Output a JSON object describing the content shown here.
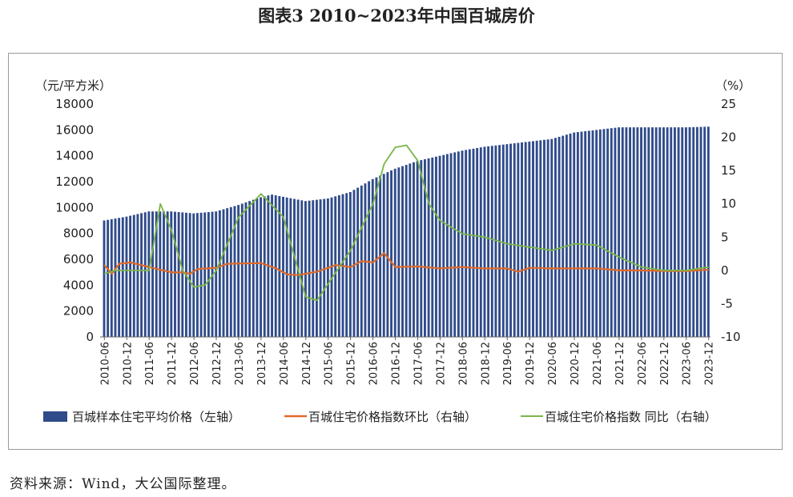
{
  "figure": {
    "title": "图表3  2010~2023年中国百城房价",
    "source": "资料来源：Wind，大公国际整理。"
  },
  "colors": {
    "bar": "#2f4b8a",
    "mom": "#e0692a",
    "yoy": "#7ab648",
    "frame": "#9a9a9a"
  },
  "chart_data": {
    "type": "bar",
    "title": "图表3  2010~2023年中国百城房价",
    "left_axis_unit": "（元/平方米）",
    "right_axis_unit": "（%）",
    "ylim_left": [
      0,
      18000
    ],
    "ylim_right": [
      -10,
      25
    ],
    "yticks_left": [
      "0",
      "2000",
      "4000",
      "6000",
      "8000",
      "10000",
      "12000",
      "14000",
      "16000",
      "18000"
    ],
    "yticks_right": [
      "-10",
      "-5",
      "0",
      "5",
      "10",
      "15",
      "20",
      "25"
    ],
    "x_tick_labels": [
      "2010-06",
      "2010-12",
      "2011-06",
      "2011-12",
      "2012-06",
      "2012-12",
      "2013-06",
      "2013-12",
      "2014-06",
      "2014-12",
      "2015-06",
      "2015-12",
      "2016-06",
      "2016-12",
      "2017-06",
      "2017-12",
      "2018-06",
      "2018-12",
      "2019-06",
      "2019-12",
      "2020-06",
      "2020-12",
      "2021-06",
      "2021-12",
      "2022-06",
      "2022-12",
      "2023-06",
      "2023-12"
    ],
    "x_start": "2010-06",
    "x_end": "2023-12",
    "grid": false,
    "legend_position": "bottom",
    "series": [
      {
        "name": "百城样本住宅平均价格（左轴）",
        "type": "bar",
        "axis": "left",
        "anchors": [
          [
            "2010-06",
            9000
          ],
          [
            "2010-12",
            9300
          ],
          [
            "2011-06",
            9700
          ],
          [
            "2011-12",
            9700
          ],
          [
            "2012-06",
            9550
          ],
          [
            "2012-12",
            9700
          ],
          [
            "2013-06",
            10200
          ],
          [
            "2013-12",
            10800
          ],
          [
            "2014-03",
            11000
          ],
          [
            "2014-12",
            10500
          ],
          [
            "2015-06",
            10700
          ],
          [
            "2015-12",
            11200
          ],
          [
            "2016-06",
            12200
          ],
          [
            "2016-12",
            13000
          ],
          [
            "2017-06",
            13600
          ],
          [
            "2017-12",
            14000
          ],
          [
            "2018-06",
            14400
          ],
          [
            "2018-12",
            14700
          ],
          [
            "2019-06",
            14900
          ],
          [
            "2019-12",
            15100
          ],
          [
            "2020-06",
            15300
          ],
          [
            "2020-12",
            15800
          ],
          [
            "2021-06",
            16000
          ],
          [
            "2021-12",
            16200
          ],
          [
            "2022-06",
            16200
          ],
          [
            "2022-12",
            16200
          ],
          [
            "2023-06",
            16200
          ],
          [
            "2023-12",
            16250
          ]
        ]
      },
      {
        "name": "百城住宅价格指数环比（右轴）",
        "type": "line",
        "axis": "right",
        "anchors": [
          [
            "2010-06",
            0.8
          ],
          [
            "2010-08",
            -0.5
          ],
          [
            "2010-10",
            1.0
          ],
          [
            "2011-01",
            1.2
          ],
          [
            "2011-06",
            0.5
          ],
          [
            "2011-12",
            -0.3
          ],
          [
            "2012-03",
            -0.3
          ],
          [
            "2012-05",
            -0.5
          ],
          [
            "2012-07",
            0.2
          ],
          [
            "2012-12",
            0.4
          ],
          [
            "2013-03",
            1.0
          ],
          [
            "2013-12",
            1.1
          ],
          [
            "2014-04",
            0.3
          ],
          [
            "2014-07",
            -0.6
          ],
          [
            "2014-10",
            -0.7
          ],
          [
            "2015-03",
            -0.2
          ],
          [
            "2015-08",
            0.8
          ],
          [
            "2015-12",
            0.5
          ],
          [
            "2016-03",
            1.4
          ],
          [
            "2016-06",
            1.2
          ],
          [
            "2016-09",
            2.6
          ],
          [
            "2016-12",
            0.5
          ],
          [
            "2017-06",
            0.6
          ],
          [
            "2017-12",
            0.3
          ],
          [
            "2018-06",
            0.5
          ],
          [
            "2018-12",
            0.3
          ],
          [
            "2019-06",
            0.3
          ],
          [
            "2019-09",
            -0.2
          ],
          [
            "2019-12",
            0.4
          ],
          [
            "2020-06",
            0.3
          ],
          [
            "2020-12",
            0.3
          ],
          [
            "2021-06",
            0.3
          ],
          [
            "2021-12",
            0.0
          ],
          [
            "2022-06",
            0.0
          ],
          [
            "2022-12",
            -0.1
          ],
          [
            "2023-06",
            -0.1
          ],
          [
            "2023-12",
            0.1
          ]
        ]
      },
      {
        "name": "百城住宅价格指数 同比（右轴）",
        "type": "line",
        "axis": "right",
        "anchors": [
          [
            "2010-06",
            -0.5
          ],
          [
            "2010-09",
            0.0
          ],
          [
            "2011-01",
            0.0
          ],
          [
            "2011-06",
            0.0
          ],
          [
            "2011-09",
            10.0
          ],
          [
            "2011-12",
            6.0
          ],
          [
            "2012-03",
            0.0
          ],
          [
            "2012-06",
            -2.5
          ],
          [
            "2012-09",
            -2.2
          ],
          [
            "2012-12",
            0.0
          ],
          [
            "2013-06",
            8.0
          ],
          [
            "2013-12",
            11.5
          ],
          [
            "2014-06",
            8.0
          ],
          [
            "2014-12",
            -4.0
          ],
          [
            "2015-03",
            -4.5
          ],
          [
            "2015-06",
            -2.0
          ],
          [
            "2015-12",
            3.0
          ],
          [
            "2016-06",
            10.0
          ],
          [
            "2016-09",
            16.0
          ],
          [
            "2016-12",
            18.5
          ],
          [
            "2017-03",
            18.8
          ],
          [
            "2017-06",
            16.5
          ],
          [
            "2017-09",
            10.0
          ],
          [
            "2017-12",
            7.5
          ],
          [
            "2018-06",
            5.5
          ],
          [
            "2018-12",
            5.0
          ],
          [
            "2019-06",
            4.0
          ],
          [
            "2019-12",
            3.5
          ],
          [
            "2020-06",
            3.0
          ],
          [
            "2020-12",
            4.0
          ],
          [
            "2021-06",
            3.8
          ],
          [
            "2021-12",
            2.0
          ],
          [
            "2022-06",
            0.5
          ],
          [
            "2022-12",
            0.0
          ],
          [
            "2023-06",
            0.0
          ],
          [
            "2023-12",
            0.5
          ]
        ]
      }
    ]
  }
}
